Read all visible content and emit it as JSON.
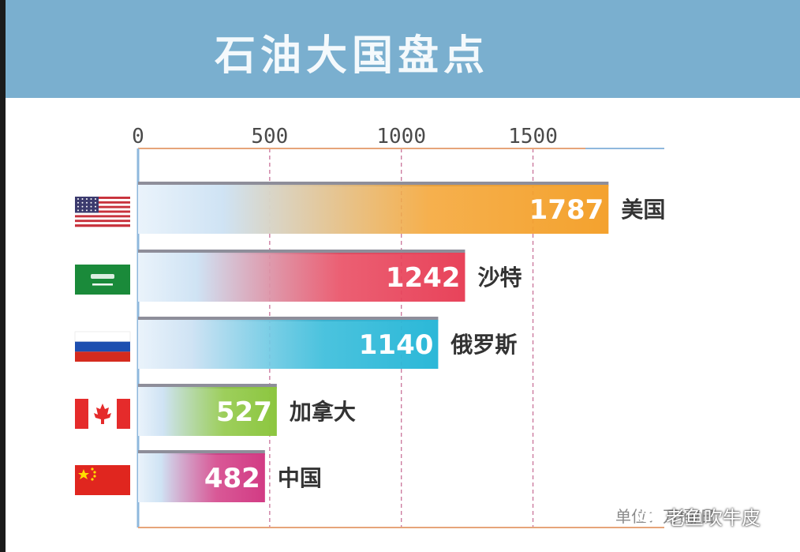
{
  "banner": {
    "title": "石油大国盘点"
  },
  "chart_data": {
    "type": "bar",
    "orientation": "horizontal",
    "title": "石油大国盘点",
    "categories": [
      "美国",
      "沙特",
      "俄罗斯",
      "加拿大",
      "中国"
    ],
    "values": [
      1787,
      1242,
      1140,
      527,
      482
    ],
    "xticks": [
      0,
      500,
      1000,
      1500
    ],
    "xlim": [
      0,
      2000
    ],
    "grid": "vertical-dashed",
    "bar_colors": [
      "#f4a22e",
      "#e8435a",
      "#2bb8d8",
      "#8cc63f",
      "#d23b84"
    ],
    "flags": [
      "us-flag-icon",
      "saudi-flag-icon",
      "russia-flag-icon",
      "canada-flag-icon",
      "china-flag-icon"
    ]
  },
  "unit": "单位：万桶/日",
  "watermark": {
    "text": "老鱼吹牛皮",
    "icon": "wechat-icon"
  }
}
